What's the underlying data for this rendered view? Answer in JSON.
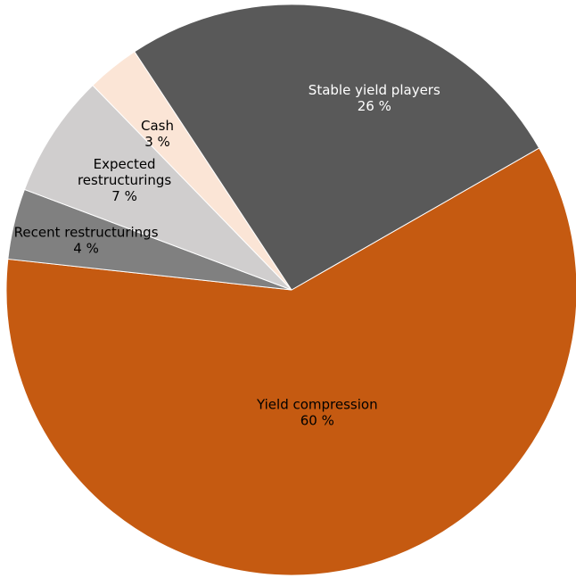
{
  "chart_data": {
    "type": "pie",
    "title": "",
    "value_suffix": " %",
    "series": [
      {
        "name": "Yield compression",
        "value": 60,
        "color": "#c55a11",
        "text_color": "#000000",
        "label_lines": [
          "Yield compression"
        ]
      },
      {
        "name": "Recent restructurings",
        "value": 4,
        "color": "#808080",
        "text_color": "#000000",
        "label_lines": [
          "Recent restructurings"
        ]
      },
      {
        "name": "Expected restructurings",
        "value": 7,
        "color": "#d0cece",
        "text_color": "#000000",
        "label_lines": [
          "Expected",
          "restructurings"
        ]
      },
      {
        "name": "Cash",
        "value": 3,
        "color": "#fbe5d6",
        "text_color": "#000000",
        "label_lines": [
          "Cash"
        ]
      },
      {
        "name": "Stable yield players",
        "value": 26,
        "color": "#595959",
        "text_color": "#ffffff",
        "label_lines": [
          "Stable yield players"
        ]
      }
    ]
  }
}
